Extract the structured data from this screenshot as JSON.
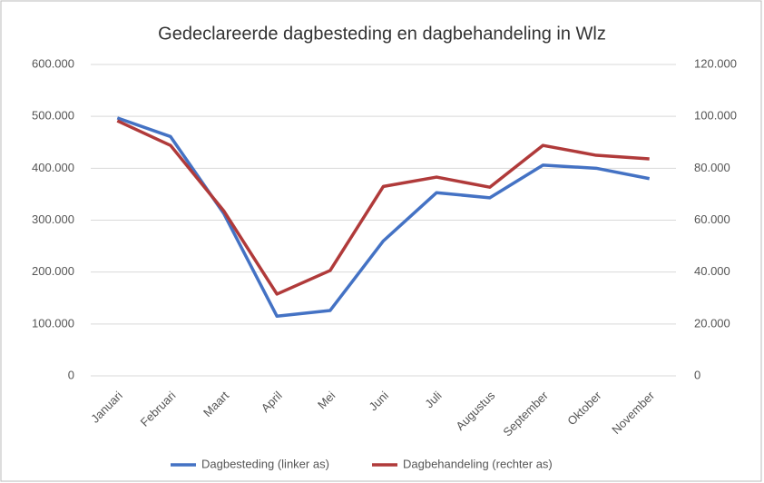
{
  "chart_data": {
    "type": "line",
    "title": "Gedeclareerde dagbesteding en dagbehandeling in Wlz",
    "categories": [
      "Januari",
      "Februari",
      "Maart",
      "April",
      "Mei",
      "Juni",
      "Juli",
      "Augustus",
      "September",
      "Oktober",
      "November"
    ],
    "series": [
      {
        "name": "Dagbesteding (linker as)",
        "color": "#4472c4",
        "axis": "y",
        "values": [
          497000,
          461000,
          313000,
          115000,
          126000,
          260000,
          353000,
          343000,
          406000,
          400000,
          380000
        ]
      },
      {
        "name": "Dagbehandeling (rechter as)",
        "color": "#b03a3a",
        "axis": "y2",
        "values": [
          98300,
          88800,
          63600,
          31500,
          40600,
          73000,
          76600,
          72700,
          88800,
          85000,
          83600
        ]
      }
    ],
    "ylim": [
      0,
      600000
    ],
    "yticks": [
      0,
      {
        "value": 100000,
        "label": "100.000"
      },
      {
        "value": 200000,
        "label": "200.000"
      },
      {
        "value": 300000,
        "label": "300.000"
      },
      {
        "value": 400000,
        "label": "400.000"
      },
      {
        "value": 500000,
        "label": "500.000"
      },
      {
        "value": 600000,
        "label": "600.000"
      }
    ],
    "y2lim": [
      0,
      120000
    ],
    "y2ticks": [
      0,
      {
        "value": 20000,
        "label": "20.000"
      },
      {
        "value": 40000,
        "label": "40.000"
      },
      {
        "value": 60000,
        "label": "60.000"
      },
      {
        "value": 80000,
        "label": "80.000"
      },
      {
        "value": 100000,
        "label": "100.000"
      },
      {
        "value": 120000,
        "label": "120.000"
      }
    ],
    "grid": true,
    "legend": "bottom"
  }
}
